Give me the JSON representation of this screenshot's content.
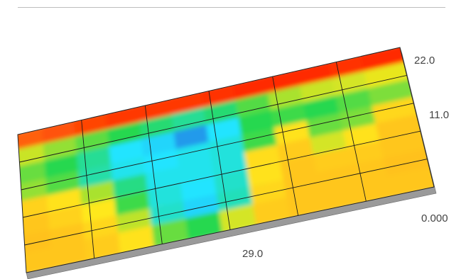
{
  "chart_data": {
    "type": "heatmap",
    "title": "",
    "y_ticks": [
      "22.0",
      "11.0",
      "0.000"
    ],
    "x_ticks": [
      "29.0"
    ],
    "grid": true,
    "colorscale": [
      "#1f4fd6",
      "#22e4ff",
      "#27d84f",
      "#ffe81a",
      "#ffb020",
      "#ff2a00"
    ],
    "z": [
      [
        0.92,
        0.94,
        0.96,
        0.98,
        0.98,
        0.98,
        0.99,
        1.0,
        1.0,
        1.0,
        0.99,
        1.0
      ],
      [
        0.55,
        0.5,
        0.45,
        0.4,
        0.36,
        0.32,
        0.36,
        0.44,
        0.52,
        0.55,
        0.56,
        0.58
      ],
      [
        0.46,
        0.4,
        0.32,
        0.2,
        0.18,
        0.1,
        0.2,
        0.4,
        0.42,
        0.4,
        0.44,
        0.48
      ],
      [
        0.5,
        0.44,
        0.3,
        0.22,
        0.2,
        0.22,
        0.24,
        0.42,
        0.62,
        0.46,
        0.48,
        0.66
      ],
      [
        0.68,
        0.62,
        0.52,
        0.34,
        0.22,
        0.22,
        0.24,
        0.64,
        0.7,
        0.56,
        0.62,
        0.72
      ],
      [
        0.72,
        0.68,
        0.6,
        0.42,
        0.24,
        0.2,
        0.26,
        0.62,
        0.72,
        0.7,
        0.7,
        0.72
      ],
      [
        0.74,
        0.72,
        0.66,
        0.54,
        0.26,
        0.18,
        0.28,
        0.66,
        0.72,
        0.72,
        0.72,
        0.74
      ],
      [
        0.72,
        0.72,
        0.7,
        0.62,
        0.46,
        0.4,
        0.56,
        0.7,
        0.72,
        0.72,
        0.72,
        0.72
      ]
    ]
  }
}
